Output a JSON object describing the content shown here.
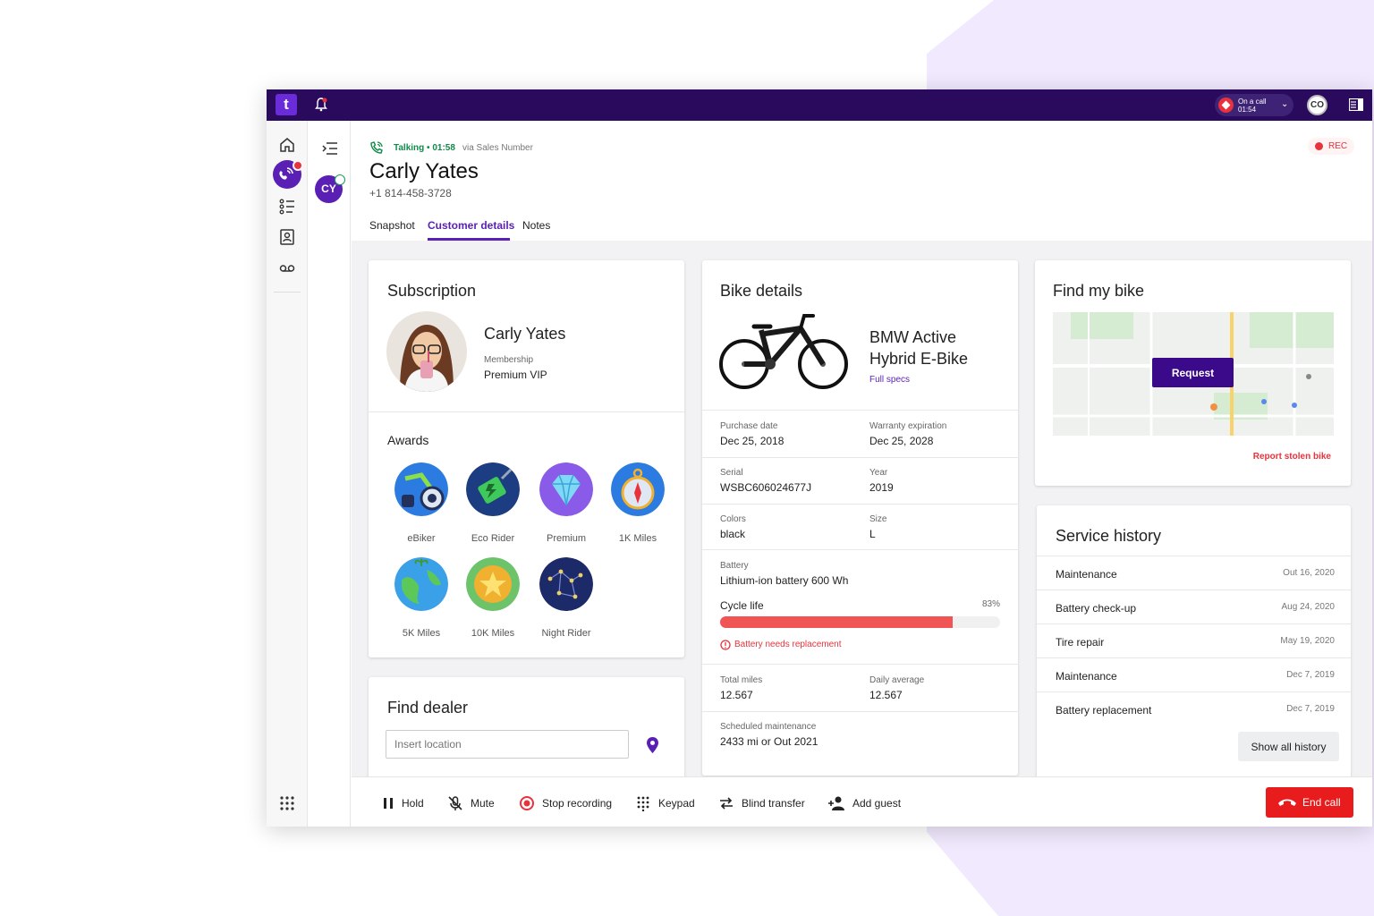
{
  "topbar": {
    "logo_text": "t",
    "on_call_label": "On a call",
    "on_call_time": "01:54",
    "user_initials": "CO"
  },
  "conversation": {
    "initials": "CY"
  },
  "call": {
    "status": "Talking • 01:58",
    "via": "via Sales Number",
    "rec_label": "REC"
  },
  "contact": {
    "name": "Carly Yates",
    "phone": "+1 814-458-3728"
  },
  "tabs": [
    {
      "label": "Snapshot"
    },
    {
      "label": "Customer details"
    },
    {
      "label": "Notes"
    }
  ],
  "active_tab": "Customer details",
  "subscription": {
    "title": "Subscription",
    "name": "Carly Yates",
    "membership_label": "Membership",
    "membership_value": "Premium VIP"
  },
  "awards": {
    "title": "Awards",
    "items": [
      {
        "label": "eBiker",
        "icon": "bike-award-icon"
      },
      {
        "label": "Eco Rider",
        "icon": "battery-plug-award-icon"
      },
      {
        "label": "Premium",
        "icon": "diamond-award-icon"
      },
      {
        "label": "1K Miles",
        "icon": "compass-award-icon"
      },
      {
        "label": "5K Miles",
        "icon": "globe-award-icon"
      },
      {
        "label": "10K Miles",
        "icon": "star-award-icon"
      },
      {
        "label": "Night Rider",
        "icon": "constellation-award-icon"
      }
    ]
  },
  "find_dealer": {
    "title": "Find dealer",
    "placeholder": "Insert location"
  },
  "bike": {
    "title": "Bike details",
    "model": "BMW Active Hybrid E-Bike",
    "full_specs": "Full specs",
    "purchase_date_label": "Purchase date",
    "purchase_date": "Dec 25, 2018",
    "warranty_label": "Warranty expiration",
    "warranty": "Dec 25, 2028",
    "serial_label": "Serial",
    "serial": "WSBC606024677J",
    "year_label": "Year",
    "year": "2019",
    "colors_label": "Colors",
    "colors": "black",
    "size_label": "Size",
    "size": "L",
    "battery_label": "Battery",
    "battery": "Lithium-ion battery 600 Wh",
    "cycle_life_label": "Cycle life",
    "cycle_life_pct": 83,
    "cycle_life_text": "83%",
    "battery_warning": "Battery needs replacement",
    "total_miles_label": "Total miles",
    "total_miles": "12.567",
    "daily_avg_label": "Daily average",
    "daily_avg": "12.567",
    "sched_label": "Scheduled maintenance",
    "sched_value": "2433 mi or Out 2021"
  },
  "find_bike": {
    "title": "Find my bike",
    "request_label": "Request",
    "report_label": "Report stolen bike"
  },
  "service_history": {
    "title": "Service history",
    "items": [
      {
        "name": "Maintenance",
        "date": "Out 16, 2020"
      },
      {
        "name": "Battery check-up",
        "date": "Aug 24, 2020"
      },
      {
        "name": "Tire repair",
        "date": "May 19, 2020"
      },
      {
        "name": "Maintenance",
        "date": "Dec 7, 2019"
      },
      {
        "name": "Battery replacement",
        "date": "Dec 7, 2019"
      }
    ],
    "show_all": "Show all history"
  },
  "controls": {
    "hold": "Hold",
    "mute": "Mute",
    "stop_recording": "Stop recording",
    "keypad": "Keypad",
    "blind_transfer": "Blind transfer",
    "add_guest": "Add guest",
    "end_call": "End call"
  },
  "colors": {
    "brand_dark": "#2a0a5c",
    "brand": "#5a1fb5",
    "danger": "#e81c1c",
    "success": "#128a4a"
  }
}
